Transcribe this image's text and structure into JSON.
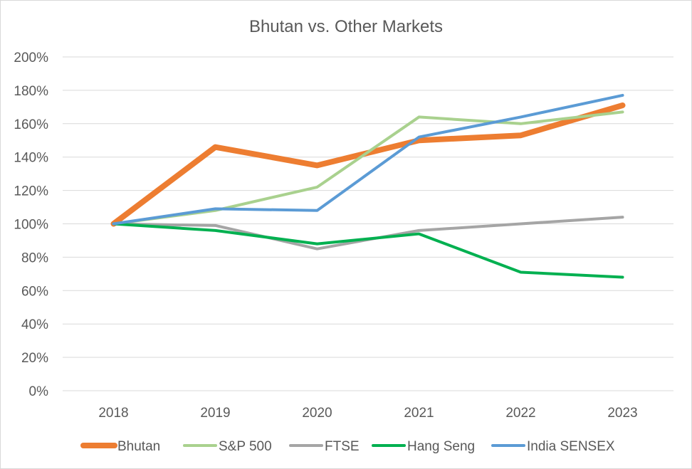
{
  "chart_data": {
    "type": "line",
    "title": "Bhutan vs. Other Markets",
    "xlabel": "",
    "ylabel": "",
    "categories": [
      "2018",
      "2019",
      "2020",
      "2021",
      "2022",
      "2023"
    ],
    "ylim": [
      0,
      200
    ],
    "y_ticks": [
      "0%",
      "20%",
      "40%",
      "60%",
      "80%",
      "100%",
      "120%",
      "140%",
      "160%",
      "180%",
      "200%"
    ],
    "grid": true,
    "legend_position": "bottom",
    "series": [
      {
        "name": "Bhutan",
        "color": "#ED7D31",
        "width": 8,
        "values": [
          100,
          146,
          135,
          150,
          153,
          171
        ]
      },
      {
        "name": "S&P 500",
        "color": "#A9D18E",
        "width": 4,
        "values": [
          100,
          108,
          122,
          164,
          160,
          167
        ]
      },
      {
        "name": "FTSE",
        "color": "#A5A5A5",
        "width": 4,
        "values": [
          100,
          99,
          85,
          96,
          100,
          104
        ]
      },
      {
        "name": "Hang Seng",
        "color": "#00B050",
        "width": 4,
        "values": [
          100,
          96,
          88,
          94,
          71,
          68
        ]
      },
      {
        "name": "India SENSEX",
        "color": "#5B9BD5",
        "width": 4,
        "values": [
          100,
          109,
          108,
          152,
          164,
          177
        ]
      }
    ]
  }
}
